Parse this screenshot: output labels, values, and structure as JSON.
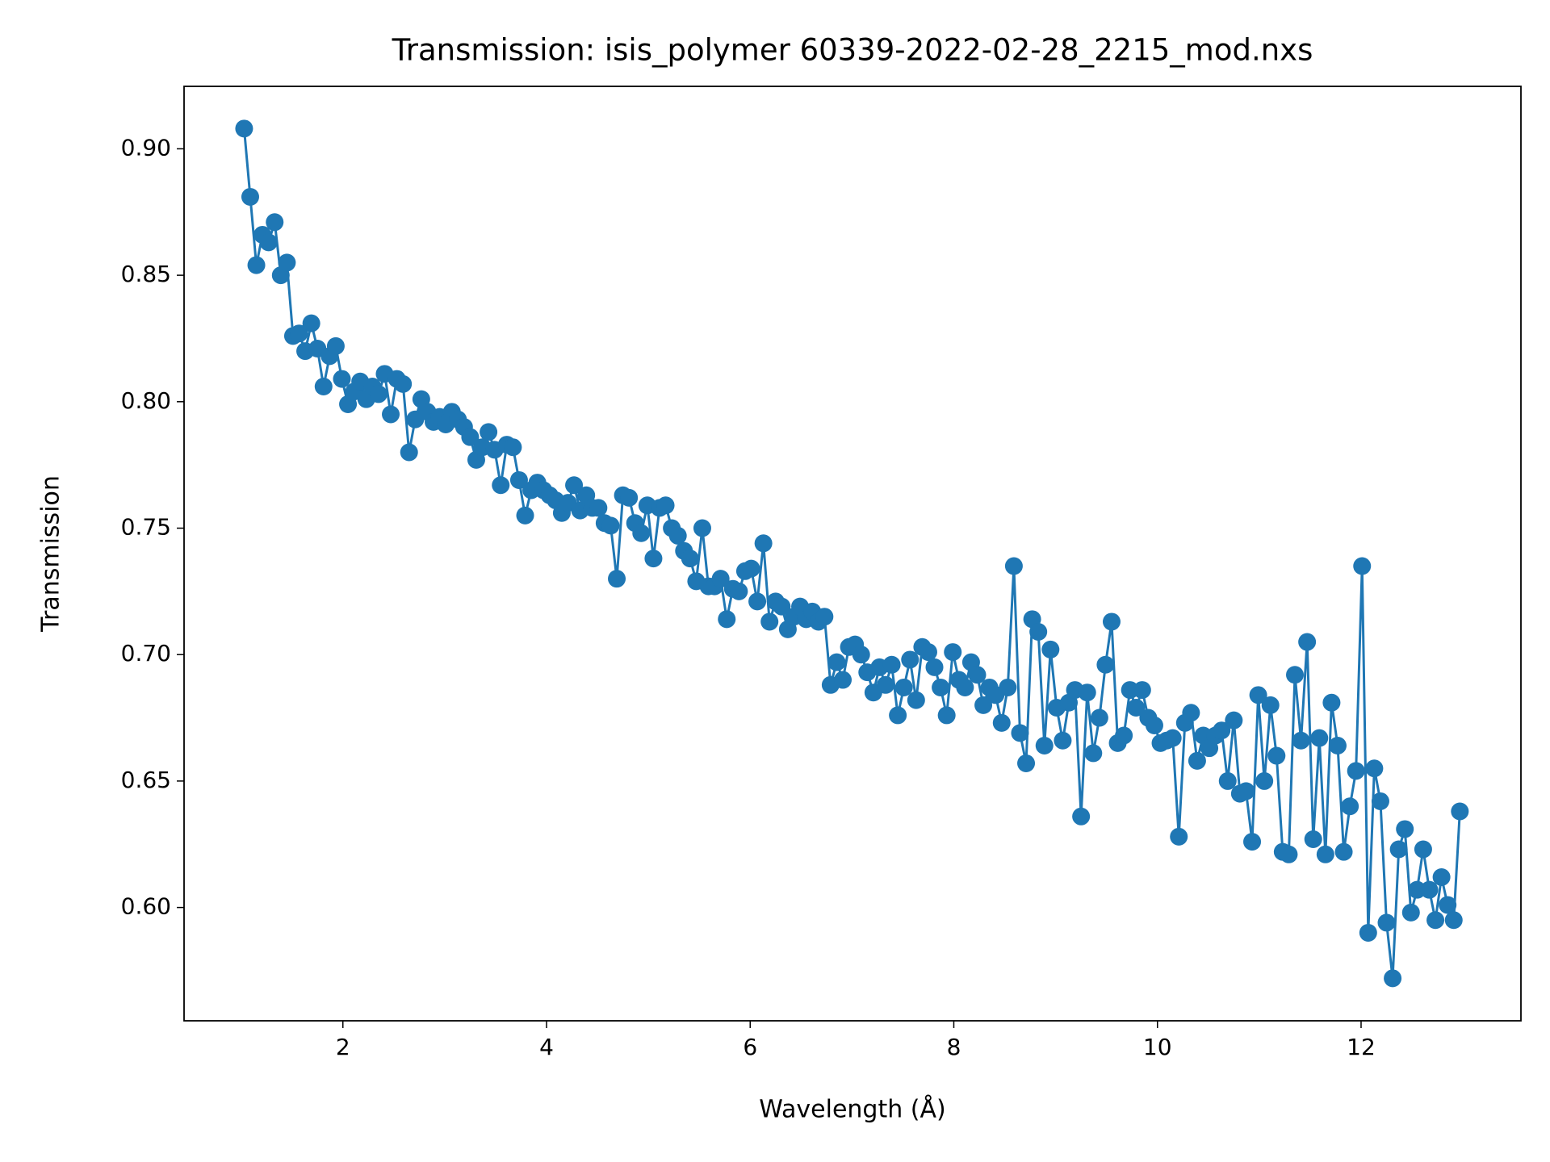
{
  "chart_data": {
    "type": "line",
    "title": "Transmission: isis_polymer 60339-2022-02-28_2215_mod.nxs",
    "x_label": "Wavelength (Å)",
    "y_label": "Transmission",
    "xlim": [
      0.44,
      13.57
    ],
    "ylim": [
      0.5552,
      0.9247
    ],
    "xticks": [
      2,
      4,
      6,
      8,
      10,
      12
    ],
    "yticks": [
      {
        "value": 0.6,
        "label": "0.60"
      },
      0.65,
      {
        "value": 0.7,
        "label": "0.70"
      },
      0.75,
      {
        "value": 0.8,
        "label": "0.80"
      },
      0.85,
      {
        "value": 0.9,
        "label": "0.90"
      }
    ],
    "grid": false,
    "series": [
      {
        "color": "#1f77b4",
        "x": [
          1.03,
          1.09,
          1.15,
          1.21,
          1.27,
          1.33,
          1.39,
          1.45,
          1.51,
          1.57,
          1.63,
          1.69,
          1.75,
          1.81,
          1.87,
          1.93,
          1.99,
          2.05,
          2.11,
          2.17,
          2.23,
          2.29,
          2.35,
          2.41,
          2.47,
          2.53,
          2.59,
          2.65,
          2.71,
          2.77,
          2.83,
          2.89,
          2.95,
          3.01,
          3.07,
          3.13,
          3.19,
          3.25,
          3.31,
          3.37,
          3.43,
          3.49,
          3.55,
          3.61,
          3.67,
          3.73,
          3.79,
          3.85,
          3.91,
          3.97,
          4.03,
          4.09,
          4.15,
          4.21,
          4.27,
          4.33,
          4.39,
          4.45,
          4.51,
          4.57,
          4.63,
          4.69,
          4.75,
          4.81,
          4.87,
          4.93,
          4.99,
          5.05,
          5.11,
          5.17,
          5.23,
          5.29,
          5.35,
          5.41,
          5.47,
          5.53,
          5.59,
          5.65,
          5.71,
          5.77,
          5.83,
          5.89,
          5.95,
          6.01,
          6.07,
          6.13,
          6.19,
          6.25,
          6.31,
          6.37,
          6.43,
          6.49,
          6.55,
          6.61,
          6.67,
          6.73,
          6.79,
          6.85,
          6.91,
          6.97,
          7.03,
          7.09,
          7.15,
          7.21,
          7.27,
          7.33,
          7.39,
          7.45,
          7.51,
          7.57,
          7.63,
          7.69,
          7.75,
          7.81,
          7.87,
          7.93,
          7.99,
          8.05,
          8.11,
          8.17,
          8.23,
          8.29,
          8.35,
          8.41,
          8.47,
          8.53,
          8.59,
          8.65,
          8.71,
          8.77,
          8.83,
          8.89,
          8.95,
          9.01,
          9.07,
          9.13,
          9.19,
          9.25,
          9.31,
          9.37,
          9.43,
          9.49,
          9.55,
          9.61,
          9.67,
          9.73,
          9.79,
          9.85,
          9.91,
          9.97,
          10.03,
          10.09,
          10.15,
          10.21,
          10.27,
          10.33,
          10.39,
          10.45,
          10.51,
          10.57,
          10.63,
          10.69,
          10.75,
          10.81,
          10.87,
          10.93,
          10.99,
          11.05,
          11.11,
          11.17,
          11.23,
          11.29,
          11.35,
          11.41,
          11.47,
          11.53,
          11.59,
          11.65,
          11.71,
          11.77,
          11.83,
          11.89,
          11.95,
          12.01,
          12.07,
          12.13,
          12.19,
          12.25,
          12.31,
          12.37,
          12.43,
          12.49,
          12.55,
          12.61,
          12.67,
          12.73,
          12.79,
          12.85,
          12.91,
          12.97
        ],
        "values": [
          0.908,
          0.881,
          0.854,
          0.866,
          0.863,
          0.871,
          0.85,
          0.855,
          0.826,
          0.827,
          0.82,
          0.831,
          0.821,
          0.806,
          0.818,
          0.822,
          0.809,
          0.799,
          0.804,
          0.808,
          0.801,
          0.806,
          0.803,
          0.811,
          0.795,
          0.809,
          0.807,
          0.78,
          0.793,
          0.801,
          0.796,
          0.792,
          0.794,
          0.791,
          0.796,
          0.793,
          0.79,
          0.786,
          0.777,
          0.782,
          0.788,
          0.781,
          0.767,
          0.783,
          0.782,
          0.769,
          0.755,
          0.765,
          0.768,
          0.765,
          0.763,
          0.761,
          0.756,
          0.76,
          0.767,
          0.757,
          0.763,
          0.758,
          0.758,
          0.752,
          0.751,
          0.73,
          0.763,
          0.762,
          0.752,
          0.748,
          0.759,
          0.738,
          0.758,
          0.759,
          0.75,
          0.747,
          0.741,
          0.738,
          0.729,
          0.75,
          0.727,
          0.727,
          0.73,
          0.714,
          0.726,
          0.725,
          0.733,
          0.734,
          0.721,
          0.744,
          0.713,
          0.721,
          0.719,
          0.71,
          0.715,
          0.719,
          0.714,
          0.717,
          0.713,
          0.715,
          0.688,
          0.697,
          0.69,
          0.703,
          0.704,
          0.7,
          0.693,
          0.685,
          0.695,
          0.688,
          0.696,
          0.676,
          0.687,
          0.698,
          0.682,
          0.703,
          0.701,
          0.695,
          0.687,
          0.676,
          0.701,
          0.69,
          0.687,
          0.697,
          0.692,
          0.68,
          0.687,
          0.684,
          0.673,
          0.687,
          0.735,
          0.669,
          0.657,
          0.714,
          0.709,
          0.664,
          0.702,
          0.679,
          0.666,
          0.681,
          0.686,
          0.636,
          0.685,
          0.661,
          0.675,
          0.696,
          0.713,
          0.665,
          0.668,
          0.686,
          0.679,
          0.686,
          0.675,
          0.672,
          0.665,
          0.666,
          0.667,
          0.628,
          0.673,
          0.677,
          0.658,
          0.668,
          0.663,
          0.668,
          0.67,
          0.65,
          0.674,
          0.645,
          0.646,
          0.626,
          0.684,
          0.65,
          0.68,
          0.66,
          0.622,
          0.621,
          0.692,
          0.666,
          0.705,
          0.627,
          0.667,
          0.621,
          0.681,
          0.664,
          0.622,
          0.64,
          0.654,
          0.735,
          0.59,
          0.655,
          0.642,
          0.594,
          0.572,
          0.623,
          0.631,
          0.598,
          0.607,
          0.623,
          0.607,
          0.595,
          0.612,
          0.601,
          0.595,
          0.638
        ]
      }
    ]
  }
}
